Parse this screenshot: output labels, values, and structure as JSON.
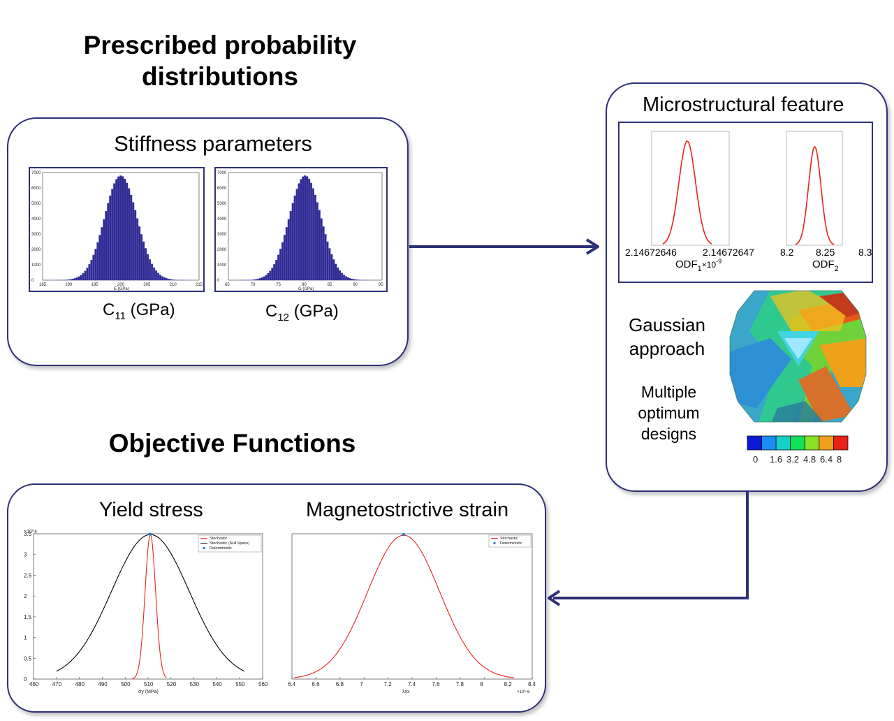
{
  "top_heading": [
    "Prescribed probability",
    "distributions"
  ],
  "stiffness": {
    "title": "Stiffness parameters",
    "c11_label": "C",
    "c11_sub": "11",
    "c11_unit": " (GPa)",
    "c12_label": "C",
    "c12_sub": "12",
    "c12_unit": " (GPa)",
    "hist_left": {
      "xlabel": "E (GPa)",
      "xticks": [
        "185",
        "190",
        "195",
        "200",
        "205",
        "210",
        "215"
      ],
      "yticks": [
        "0",
        "1000",
        "2000",
        "3000",
        "4000",
        "5000",
        "6000",
        "7000"
      ]
    },
    "hist_right": {
      "xlabel": "G (GPa)",
      "xticks": [
        "65",
        "70",
        "75",
        "80",
        "85",
        "90",
        "95"
      ],
      "yticks": [
        "0",
        "1000",
        "2000",
        "3000",
        "4000",
        "5000",
        "6000",
        "7000"
      ]
    }
  },
  "micro": {
    "title": "Microstructural feature",
    "odf1": {
      "ticks": [
        "2.14672646",
        "2.14672647"
      ],
      "label": "ODF",
      "sub": "1",
      "scale": "×10",
      "exp": "-9"
    },
    "odf2": {
      "ticks": [
        "8.2",
        "8.25",
        "8.3"
      ],
      "label": "ODF",
      "sub": "2"
    },
    "approach": [
      "Gaussian",
      "approach"
    ],
    "designs": [
      "Multiple",
      "optimum",
      "designs"
    ],
    "colorbar_ticks": [
      "0",
      "1.6",
      "3.2",
      "4.8",
      "6.4",
      "8"
    ],
    "colorbar_colors": [
      "#0b1ad6",
      "#1a8ef2",
      "#15d0c6",
      "#12e15a",
      "#8ae022",
      "#f2a01c",
      "#e8231a"
    ]
  },
  "objective": {
    "heading": "Objective Functions",
    "yield_title": "Yield stress",
    "strain_title": "Magnetostrictive strain"
  },
  "chart_data": [
    {
      "type": "bar",
      "xlabel": "E (GPa)",
      "xlim": [
        185,
        215
      ],
      "ylim": [
        0,
        7000
      ],
      "mean": 200,
      "std": 3.1,
      "peak": 6800
    },
    {
      "type": "bar",
      "xlabel": "G (GPa)",
      "xlim": [
        65,
        95
      ],
      "ylim": [
        0,
        7000
      ],
      "mean": 80,
      "std": 3.1,
      "peak": 6800
    },
    {
      "type": "line",
      "xlabel": "σy (MPa)",
      "xlim": [
        460,
        560
      ],
      "ylim": [
        0,
        3.5
      ],
      "y_multiplier": "×10^4",
      "xticks": [
        460,
        470,
        480,
        490,
        500,
        510,
        520,
        530,
        540,
        550,
        560
      ],
      "yticks": [
        0,
        0.5,
        1,
        1.5,
        2,
        2.5,
        3,
        3.5
      ],
      "series": [
        {
          "name": "Stochastic",
          "color": "#e8231a",
          "mean": 511,
          "std": 2.3,
          "peak": 3.48,
          "range": [
            503,
            518
          ]
        },
        {
          "name": "Stochastic (Null Space)",
          "color": "#000000",
          "mean": 511,
          "std": 17,
          "peak": 3.48,
          "range": [
            470,
            552
          ]
        },
        {
          "name": "Deterministic",
          "color": "#1a7fd6",
          "points": [
            [
              511,
              3.49
            ]
          ]
        }
      ]
    },
    {
      "type": "line",
      "xlabel": "λxx",
      "xlim": [
        6.4,
        8.4
      ],
      "ylim": [
        0,
        1
      ],
      "x_multiplier": "×10^-6",
      "xticks": [
        6.4,
        6.6,
        6.8,
        7,
        7.2,
        7.4,
        7.6,
        7.8,
        8,
        8.2,
        8.4
      ],
      "series": [
        {
          "name": "Stochastic",
          "color": "#e8231a",
          "mean": 7.33,
          "std": 0.3,
          "peak": 0.99,
          "range": [
            6.42,
            8.25
          ]
        },
        {
          "name": "Deterministic",
          "color": "#1a7fd6",
          "points": [
            [
              7.33,
              0.995
            ]
          ]
        }
      ]
    }
  ]
}
